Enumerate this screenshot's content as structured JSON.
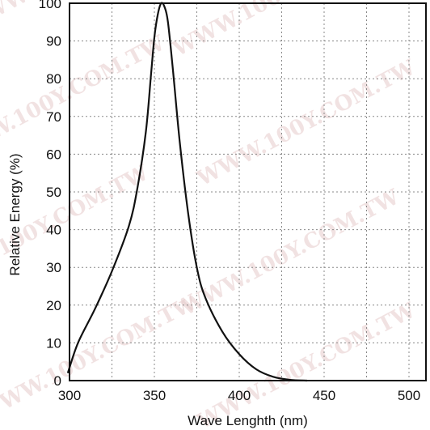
{
  "chart_data": {
    "type": "line",
    "title": "",
    "xlabel": "Wave Lenghth (nm)",
    "ylabel": "Relative Energy (%)",
    "xlim": [
      300,
      510
    ],
    "ylim": [
      0,
      100
    ],
    "xticks": [
      300,
      350,
      400,
      450,
      500
    ],
    "yticks": [
      0,
      10,
      20,
      30,
      40,
      50,
      60,
      70,
      80,
      90,
      100
    ],
    "grid": true,
    "x": [
      297,
      305,
      315,
      325,
      335,
      340,
      345,
      348,
      350,
      352,
      354,
      356,
      358,
      361,
      365,
      370,
      375,
      380,
      390,
      400,
      410,
      420,
      430,
      440
    ],
    "y": [
      2,
      10,
      19,
      29,
      41,
      51,
      66,
      81,
      91,
      97,
      100,
      99,
      95,
      82,
      63,
      44,
      30,
      22,
      13,
      7,
      3,
      1,
      0.2,
      0
    ],
    "line_color": "#111111",
    "grid_color": "#888888",
    "watermark_text": "WWW.100Y.COM.TW"
  }
}
